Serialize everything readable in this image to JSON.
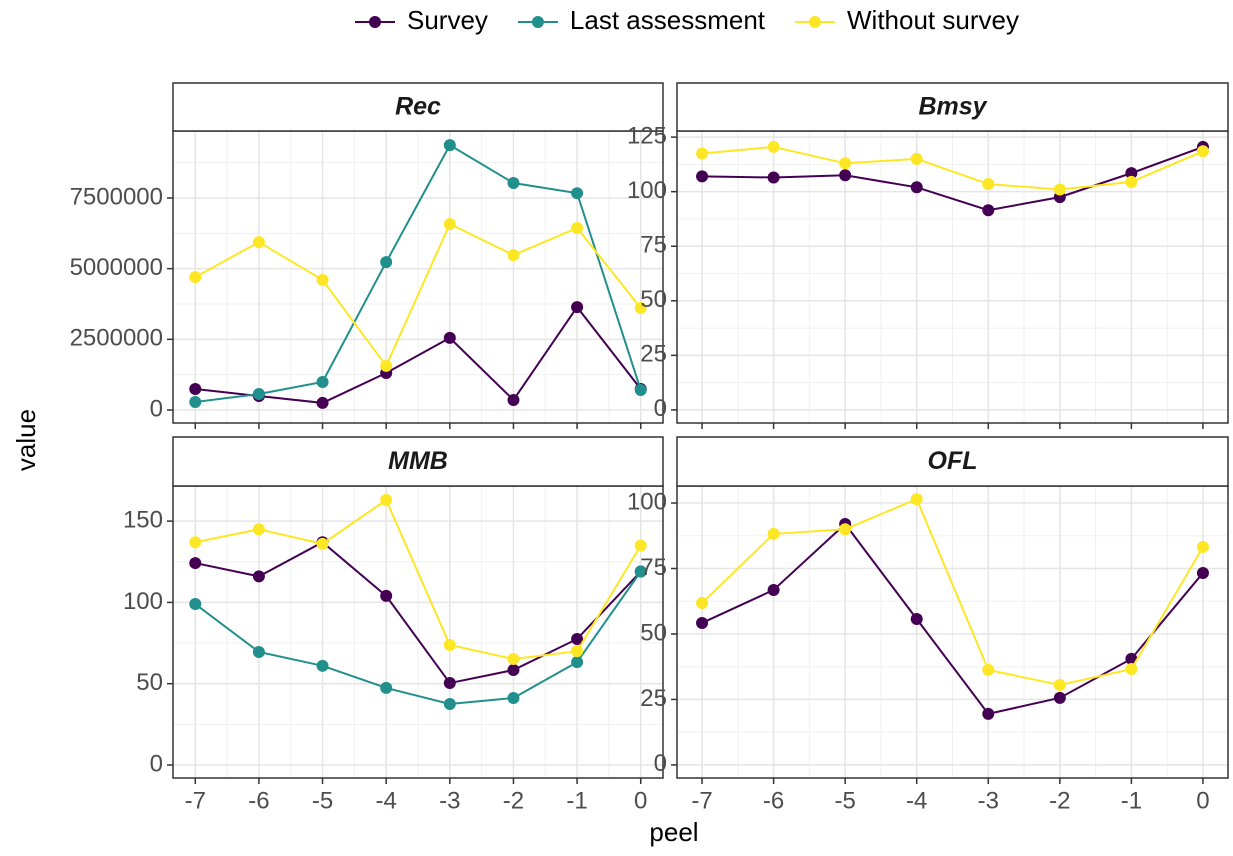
{
  "x_label": "peel",
  "y_label": "value",
  "chart_data": [
    {
      "type": "line",
      "title": "Rec",
      "x": [
        -7,
        -6,
        -5,
        -4,
        -3,
        -2,
        -1,
        0
      ],
      "xlim": [
        -7.35,
        0.35
      ],
      "xticks": [
        -7,
        -6,
        -5,
        -4,
        -3,
        -2,
        -1,
        0
      ],
      "ylim": [
        -460000,
        9870000
      ],
      "yticks": [
        0,
        2500000,
        5000000,
        7500000
      ],
      "grid": true,
      "series": [
        {
          "name": "Survey",
          "color": "#440154",
          "values": [
            742000,
            495000,
            250000,
            1310000,
            2550000,
            354000,
            3640000,
            742000
          ]
        },
        {
          "name": "Last assessment",
          "color": "#21908c",
          "values": [
            283000,
            566000,
            990000,
            5230000,
            9370000,
            8030000,
            7670000,
            707000
          ]
        },
        {
          "name": "Without survey",
          "color": "#fde725",
          "values": [
            4700000,
            5940000,
            4600000,
            1560000,
            6580000,
            5480000,
            6440000,
            3610000
          ]
        }
      ]
    },
    {
      "type": "line",
      "title": "Bmsy",
      "x": [
        -7,
        -6,
        -5,
        -4,
        -3,
        -2,
        -1,
        0
      ],
      "xlim": [
        -7.35,
        0.35
      ],
      "xticks": [
        -7,
        -6,
        -5,
        -4,
        -3,
        -2,
        -1,
        0
      ],
      "ylim": [
        -6,
        127.8
      ],
      "yticks": [
        0,
        25,
        50,
        75,
        100,
        125
      ],
      "grid": true,
      "series": [
        {
          "name": "Survey",
          "color": "#440154",
          "values": [
            107,
            106.5,
            107.5,
            102,
            91.5,
            97.5,
            108.5,
            120.5
          ]
        },
        {
          "name": "Without survey",
          "color": "#fde725",
          "values": [
            117.5,
            120.5,
            113,
            115,
            103.5,
            101,
            104.5,
            118.5
          ]
        }
      ]
    },
    {
      "type": "line",
      "title": "MMB",
      "x": [
        -7,
        -6,
        -5,
        -4,
        -3,
        -2,
        -1,
        0
      ],
      "xlim": [
        -7.35,
        0.35
      ],
      "xticks": [
        -7,
        -6,
        -5,
        -4,
        -3,
        -2,
        -1,
        0
      ],
      "ylim": [
        -8,
        171.6
      ],
      "yticks": [
        0,
        50,
        100,
        150
      ],
      "grid": true,
      "series": [
        {
          "name": "Survey",
          "color": "#440154",
          "values": [
            124.2,
            116,
            137,
            104,
            50.4,
            58.4,
            77.5,
            119
          ]
        },
        {
          "name": "Last assessment",
          "color": "#21908c",
          "values": [
            99,
            69.5,
            61,
            47.4,
            37.5,
            41.2,
            63.3,
            119
          ]
        },
        {
          "name": "Without survey",
          "color": "#fde725",
          "values": [
            137,
            145,
            136,
            163,
            73.8,
            65.2,
            70,
            135
          ]
        }
      ]
    },
    {
      "type": "line",
      "title": "OFL",
      "x": [
        -7,
        -6,
        -5,
        -4,
        -3,
        -2,
        -1,
        0
      ],
      "xlim": [
        -7.35,
        0.35
      ],
      "xticks": [
        -7,
        -6,
        -5,
        -4,
        -3,
        -2,
        -1,
        0
      ],
      "ylim": [
        -5,
        106.5
      ],
      "yticks": [
        0,
        25,
        50,
        75,
        100
      ],
      "grid": true,
      "series": [
        {
          "name": "Survey",
          "color": "#440154",
          "values": [
            54.2,
            66.8,
            92,
            55.7,
            19.5,
            25.6,
            40.5,
            73.3
          ]
        },
        {
          "name": "Without survey",
          "color": "#fde725",
          "values": [
            61.8,
            88.2,
            90,
            101.5,
            36.3,
            30.5,
            36.6,
            83.2
          ]
        }
      ]
    }
  ]
}
